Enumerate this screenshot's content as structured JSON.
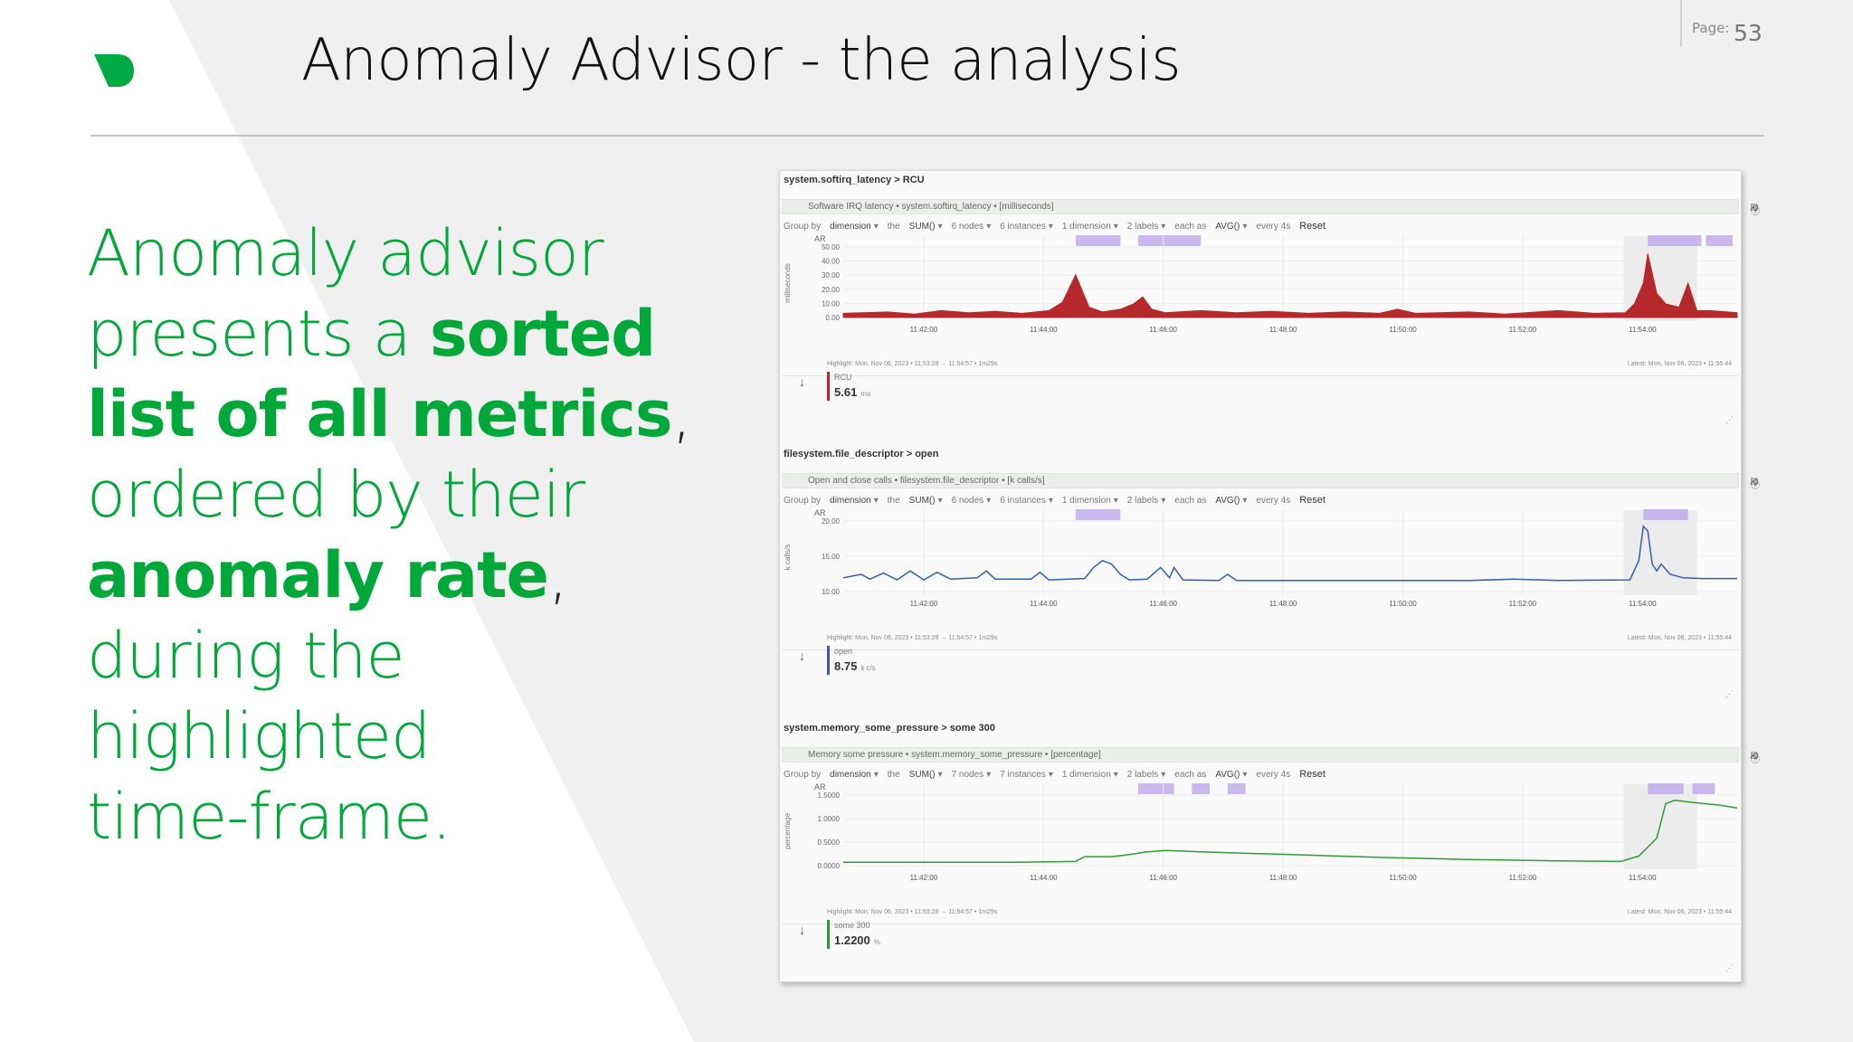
{
  "slide": {
    "title": "Anomaly Advisor - the analysis",
    "page_label": "Page:",
    "page_number": "53",
    "brand_color": "#00AB44"
  },
  "lead": {
    "l1": "Anomaly advisor",
    "l2a": "presents a ",
    "l2b": "sorted",
    "l3a": "list of all metrics",
    "l3b": ",",
    "l4": "ordered by their",
    "l5a": "anomaly rate",
    "l5b": ",",
    "l6": "during the",
    "l7": "highlighted",
    "l8": "time-frame."
  },
  "controls_common": {
    "group_by": "Group by",
    "dimension": "dimension",
    "the": "the",
    "sum": "SUM()",
    "dim1": "1 dimension",
    "labels": "2 labels",
    "each_as": "each as",
    "avg": "AVG()",
    "every": "every 4s",
    "reset": "Reset",
    "highlight": "Highlight: Mon, Nov 06, 2023 • 11:53:28 → 11:54:57 • 1m29s",
    "latest": "Latest: Mon, Nov 06, 2023 • 11:55:44",
    "ar": "AR",
    "x_ticks": [
      "11:42:00",
      "11:44:00",
      "11:46:00",
      "11:48:00",
      "11:50:00",
      "11:52:00",
      "11:54:00"
    ]
  },
  "panels": [
    {
      "heading": "system.softirq_latency > RCU",
      "subtitle": "Software IRQ latency • system.softirq_latency • [milliseconds]",
      "nodes": "6 nodes",
      "instances": "6 instances",
      "ylabel": "milliseconds",
      "y_ticks": [
        "50.00",
        "40.00",
        "30.00",
        "20.00",
        "10.00",
        "0.00"
      ],
      "legend_name": "RCU",
      "legend_value": "5.61",
      "legend_unit": "ms",
      "color": "#b5292c"
    },
    {
      "heading": "filesystem.file_descriptor > open",
      "subtitle": "Open and close calls • filesystem.file_descriptor • [k calls/s]",
      "nodes": "6 nodes",
      "instances": "6 instances",
      "ylabel": "k calls/s",
      "y_ticks": [
        "20.00",
        "15.00",
        "10.00"
      ],
      "legend_name": "open",
      "legend_value": "8.75",
      "legend_unit": "k c/s",
      "color": "#3a5bb5"
    },
    {
      "heading": "system.memory_some_pressure > some 300",
      "subtitle": "Memory some pressure • system.memory_some_pressure • [percentage]",
      "nodes": "7 nodes",
      "instances": "7 instances",
      "ylabel": "percentage",
      "y_ticks": [
        "1.5000",
        "1.0000",
        "0.5000",
        "0.0000"
      ],
      "legend_name": "some 300",
      "legend_value": "1.2200",
      "legend_unit": "%",
      "color": "#2e9b3a"
    }
  ]
}
